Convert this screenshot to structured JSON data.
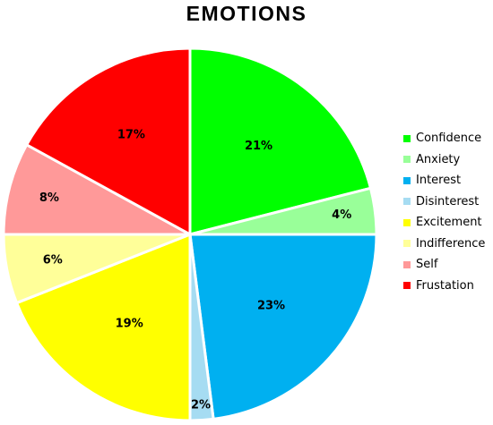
{
  "chart_data": {
    "type": "pie",
    "title": "EMOTIONS",
    "legend_position": "right",
    "slices": [
      {
        "name": "Confidence",
        "value": 21,
        "label": "21%",
        "color": "#00ff00"
      },
      {
        "name": "Anxiety",
        "value": 4,
        "label": "4%",
        "color": "#99ff99"
      },
      {
        "name": "Interest",
        "value": 23,
        "label": "23%",
        "color": "#00b0f0"
      },
      {
        "name": "Disinterest",
        "value": 2,
        "label": "2%",
        "color": "#a6dcf2"
      },
      {
        "name": "Excitement",
        "value": 19,
        "label": "19%",
        "color": "#ffff00"
      },
      {
        "name": "Indifference",
        "value": 6,
        "label": "6%",
        "color": "#ffff99"
      },
      {
        "name": "Self",
        "value": 8,
        "label": "8%",
        "color": "#ff9999"
      },
      {
        "name": "Frustation",
        "value": 17,
        "label": "17%",
        "color": "#ff0000"
      }
    ]
  }
}
